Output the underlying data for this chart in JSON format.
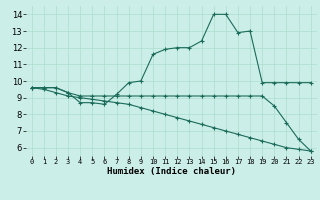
{
  "xlabel": "Humidex (Indice chaleur)",
  "bg_color": "#cceee8",
  "line_color": "#1a6b5a",
  "grid_color": "#aaddcc",
  "x_ticks": [
    0,
    1,
    2,
    3,
    4,
    5,
    6,
    7,
    8,
    9,
    10,
    11,
    12,
    13,
    14,
    15,
    16,
    17,
    18,
    19,
    20,
    21,
    22,
    23
  ],
  "y_ticks": [
    6,
    7,
    8,
    9,
    10,
    11,
    12,
    13,
    14
  ],
  "ylim": [
    5.5,
    14.5
  ],
  "xlim": [
    -0.5,
    23.5
  ],
  "line1_y": [
    9.6,
    9.6,
    9.6,
    9.3,
    8.7,
    8.7,
    8.6,
    9.2,
    9.9,
    10.0,
    11.6,
    11.9,
    12.0,
    12.0,
    12.4,
    14.0,
    14.0,
    12.9,
    13.0,
    9.9,
    9.9,
    9.9,
    9.9,
    9.9
  ],
  "line2_y": [
    9.6,
    9.6,
    9.6,
    9.3,
    9.1,
    9.1,
    9.1,
    9.1,
    9.1,
    9.1,
    9.1,
    9.1,
    9.1,
    9.1,
    9.1,
    9.1,
    9.1,
    9.1,
    9.1,
    9.1,
    8.5,
    7.5,
    6.5,
    5.8
  ],
  "line3_y": [
    9.6,
    9.5,
    9.3,
    9.1,
    9.0,
    8.9,
    8.8,
    8.7,
    8.6,
    8.4,
    8.2,
    8.0,
    7.8,
    7.6,
    7.4,
    7.2,
    7.0,
    6.8,
    6.6,
    6.4,
    6.2,
    6.0,
    5.9,
    5.8
  ]
}
